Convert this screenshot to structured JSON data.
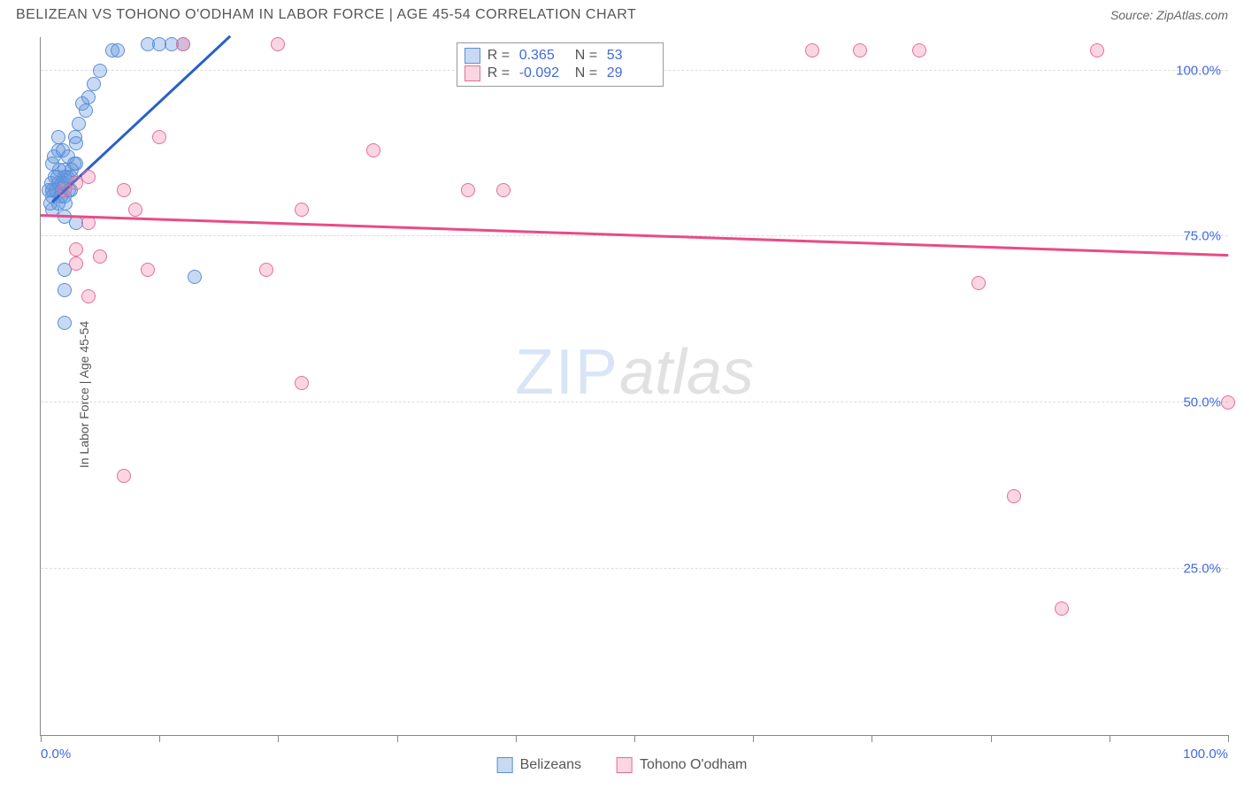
{
  "title": "BELIZEAN VS TOHONO O'ODHAM IN LABOR FORCE | AGE 45-54 CORRELATION CHART",
  "source": "Source: ZipAtlas.com",
  "y_axis_label": "In Labor Force | Age 45-54",
  "watermark_a": "ZIP",
  "watermark_b": "atlas",
  "chart": {
    "type": "scatter",
    "xlim": [
      0,
      100
    ],
    "ylim": [
      0,
      105
    ],
    "y_ticks": [
      {
        "v": 25,
        "label": "25.0%"
      },
      {
        "v": 50,
        "label": "50.0%"
      },
      {
        "v": 75,
        "label": "75.0%"
      },
      {
        "v": 100,
        "label": "100.0%"
      }
    ],
    "x_ticks": [
      {
        "v": 0,
        "label": "0.0%",
        "align": "left"
      },
      {
        "v": 10,
        "label": ""
      },
      {
        "v": 20,
        "label": ""
      },
      {
        "v": 30,
        "label": ""
      },
      {
        "v": 40,
        "label": ""
      },
      {
        "v": 50,
        "label": ""
      },
      {
        "v": 60,
        "label": ""
      },
      {
        "v": 70,
        "label": ""
      },
      {
        "v": 80,
        "label": ""
      },
      {
        "v": 90,
        "label": ""
      },
      {
        "v": 100,
        "label": "100.0%",
        "align": "right"
      }
    ],
    "grid_color": "#dddddd",
    "background_color": "#ffffff",
    "series": [
      {
        "name": "Belizeans",
        "fill": "rgba(96,150,220,0.35)",
        "stroke": "#5b8fd6",
        "marker_radius": 8,
        "trend": {
          "x1": 1,
          "y1": 80,
          "x2": 16,
          "y2": 105,
          "color": "#2a5fc9",
          "width": 2.5
        },
        "R": "0.365",
        "N": "53",
        "points": [
          [
            1,
            82
          ],
          [
            1.5,
            83
          ],
          [
            2,
            84
          ],
          [
            2,
            85
          ],
          [
            2.5,
            84
          ],
          [
            1,
            86
          ],
          [
            1.5,
            88
          ],
          [
            3,
            89
          ],
          [
            1.5,
            90
          ],
          [
            1,
            82
          ],
          [
            2,
            83
          ],
          [
            0.8,
            80
          ],
          [
            2.5,
            82
          ],
          [
            1.2,
            84
          ],
          [
            3,
            86
          ],
          [
            4,
            96
          ],
          [
            5,
            100
          ],
          [
            3.5,
            95
          ],
          [
            4.5,
            98
          ],
          [
            6,
            103
          ],
          [
            6.5,
            103
          ],
          [
            9,
            104
          ],
          [
            10,
            104
          ],
          [
            11,
            104
          ],
          [
            12,
            104
          ],
          [
            2,
            78
          ],
          [
            2,
            70
          ],
          [
            2,
            67
          ],
          [
            2,
            62
          ],
          [
            3,
            77
          ],
          [
            13,
            69
          ],
          [
            1,
            81
          ],
          [
            1.3,
            82
          ],
          [
            1.8,
            83
          ],
          [
            2.2,
            84
          ],
          [
            1.6,
            85
          ],
          [
            2.8,
            86
          ],
          [
            1.1,
            87
          ],
          [
            2.4,
            82
          ],
          [
            1.7,
            81
          ],
          [
            2.1,
            80
          ],
          [
            0.9,
            83
          ],
          [
            1.4,
            84
          ],
          [
            2.6,
            85
          ],
          [
            3.2,
            92
          ],
          [
            2.9,
            90
          ],
          [
            3.8,
            94
          ],
          [
            1.9,
            88
          ],
          [
            2.3,
            87
          ],
          [
            1,
            79
          ],
          [
            1.5,
            80
          ],
          [
            2,
            81
          ],
          [
            0.7,
            82
          ]
        ]
      },
      {
        "name": "Tohono O'odham",
        "fill": "rgba(235,120,160,0.30)",
        "stroke": "#e56f99",
        "marker_radius": 8,
        "trend": {
          "x1": 0,
          "y1": 78,
          "x2": 100,
          "y2": 72,
          "color": "#e94b86",
          "width": 2.5
        },
        "R": "-0.092",
        "N": "29",
        "points": [
          [
            2,
            82
          ],
          [
            3,
            83
          ],
          [
            4,
            84
          ],
          [
            7,
            82
          ],
          [
            8,
            79
          ],
          [
            3,
            73
          ],
          [
            5,
            72
          ],
          [
            4,
            66
          ],
          [
            4,
            77
          ],
          [
            3,
            71
          ],
          [
            10,
            90
          ],
          [
            12,
            104
          ],
          [
            9,
            70
          ],
          [
            20,
            104
          ],
          [
            22,
            79
          ],
          [
            19,
            70
          ],
          [
            28,
            88
          ],
          [
            36,
            82
          ],
          [
            39,
            82
          ],
          [
            22,
            53
          ],
          [
            7,
            39
          ],
          [
            65,
            103
          ],
          [
            69,
            103
          ],
          [
            74,
            103
          ],
          [
            89,
            103
          ],
          [
            79,
            68
          ],
          [
            82,
            36
          ],
          [
            86,
            19
          ],
          [
            100,
            50
          ]
        ]
      }
    ]
  },
  "legend_top": {
    "rows": [
      {
        "swatch_fill": "rgba(96,150,220,0.35)",
        "swatch_stroke": "#5b8fd6",
        "r_label": "R =",
        "r_val": "0.365",
        "n_label": "N =",
        "n_val": "53"
      },
      {
        "swatch_fill": "rgba(235,120,160,0.30)",
        "swatch_stroke": "#e56f99",
        "r_label": "R =",
        "r_val": "-0.092",
        "n_label": "N =",
        "n_val": "29"
      }
    ]
  },
  "legend_bottom": [
    {
      "swatch_fill": "rgba(96,150,220,0.35)",
      "swatch_stroke": "#5b8fd6",
      "label": "Belizeans"
    },
    {
      "swatch_fill": "rgba(235,120,160,0.30)",
      "swatch_stroke": "#e56f99",
      "label": "Tohono O'odham"
    }
  ]
}
